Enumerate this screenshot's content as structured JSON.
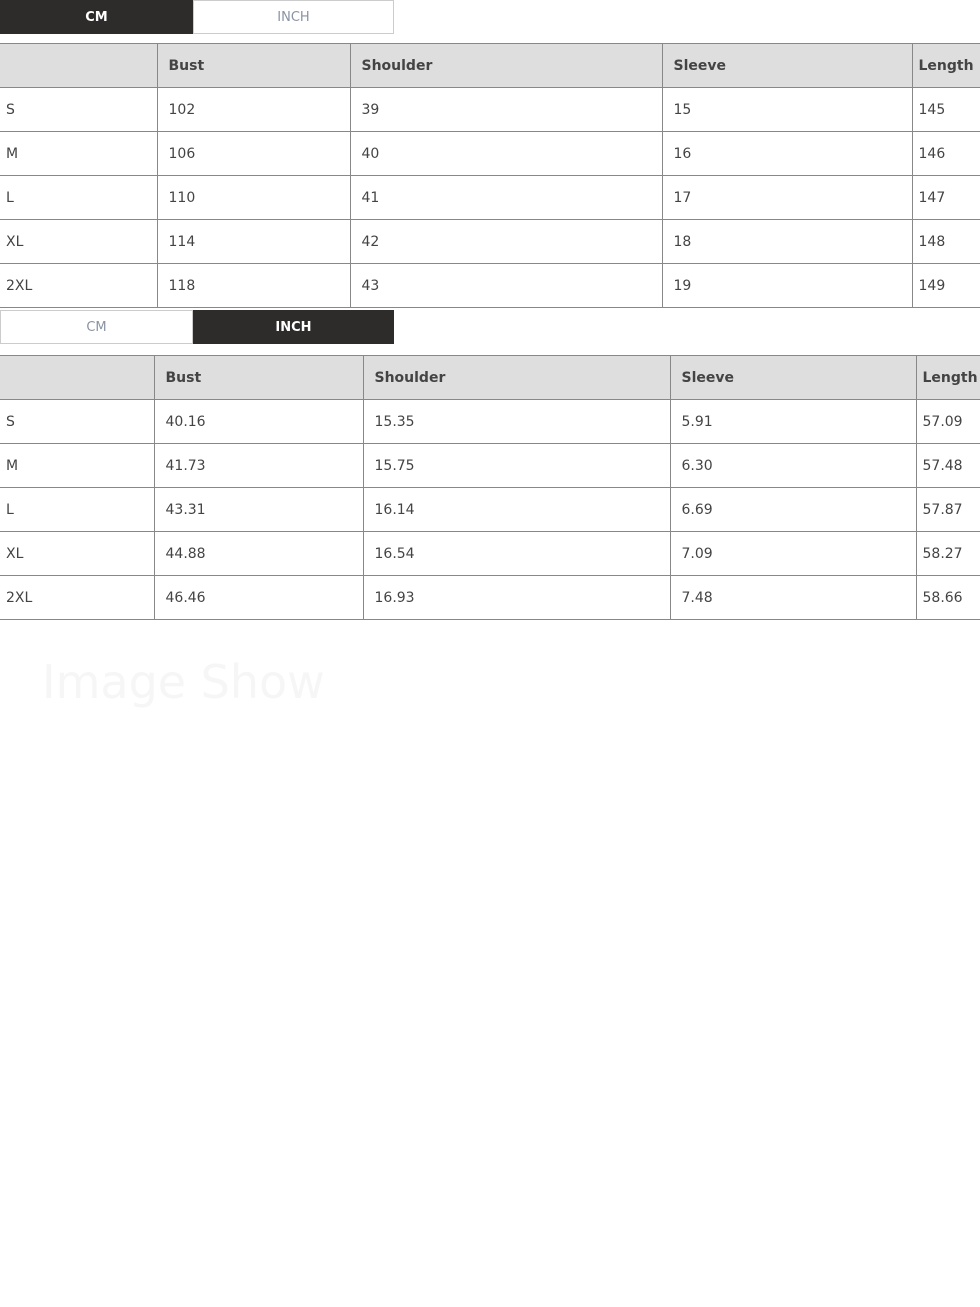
{
  "unit_tabs": {
    "cm": "CM",
    "inch": "INCH"
  },
  "columns": [
    "",
    "Bust",
    "Shoulder",
    "Sleeve",
    "Length"
  ],
  "cm_table": {
    "active_tab": "cm",
    "rows": [
      [
        "S",
        "102",
        "39",
        "15",
        "145"
      ],
      [
        "M",
        "106",
        "40",
        "16",
        "146"
      ],
      [
        "L",
        "110",
        "41",
        "17",
        "147"
      ],
      [
        "XL",
        "114",
        "42",
        "18",
        "148"
      ],
      [
        "2XL",
        "118",
        "43",
        "19",
        "149"
      ]
    ]
  },
  "inch_table": {
    "active_tab": "inch",
    "rows": [
      [
        "S",
        "40.16",
        "15.35",
        "5.91",
        "57.09"
      ],
      [
        "M",
        "41.73",
        "15.75",
        "6.30",
        "57.48"
      ],
      [
        "L",
        "43.31",
        "16.14",
        "6.69",
        "57.87"
      ],
      [
        "XL",
        "44.88",
        "16.54",
        "7.09",
        "58.27"
      ],
      [
        "2XL",
        "46.46",
        "16.93",
        "7.48",
        "58.66"
      ]
    ]
  },
  "watermark": "Image Show"
}
